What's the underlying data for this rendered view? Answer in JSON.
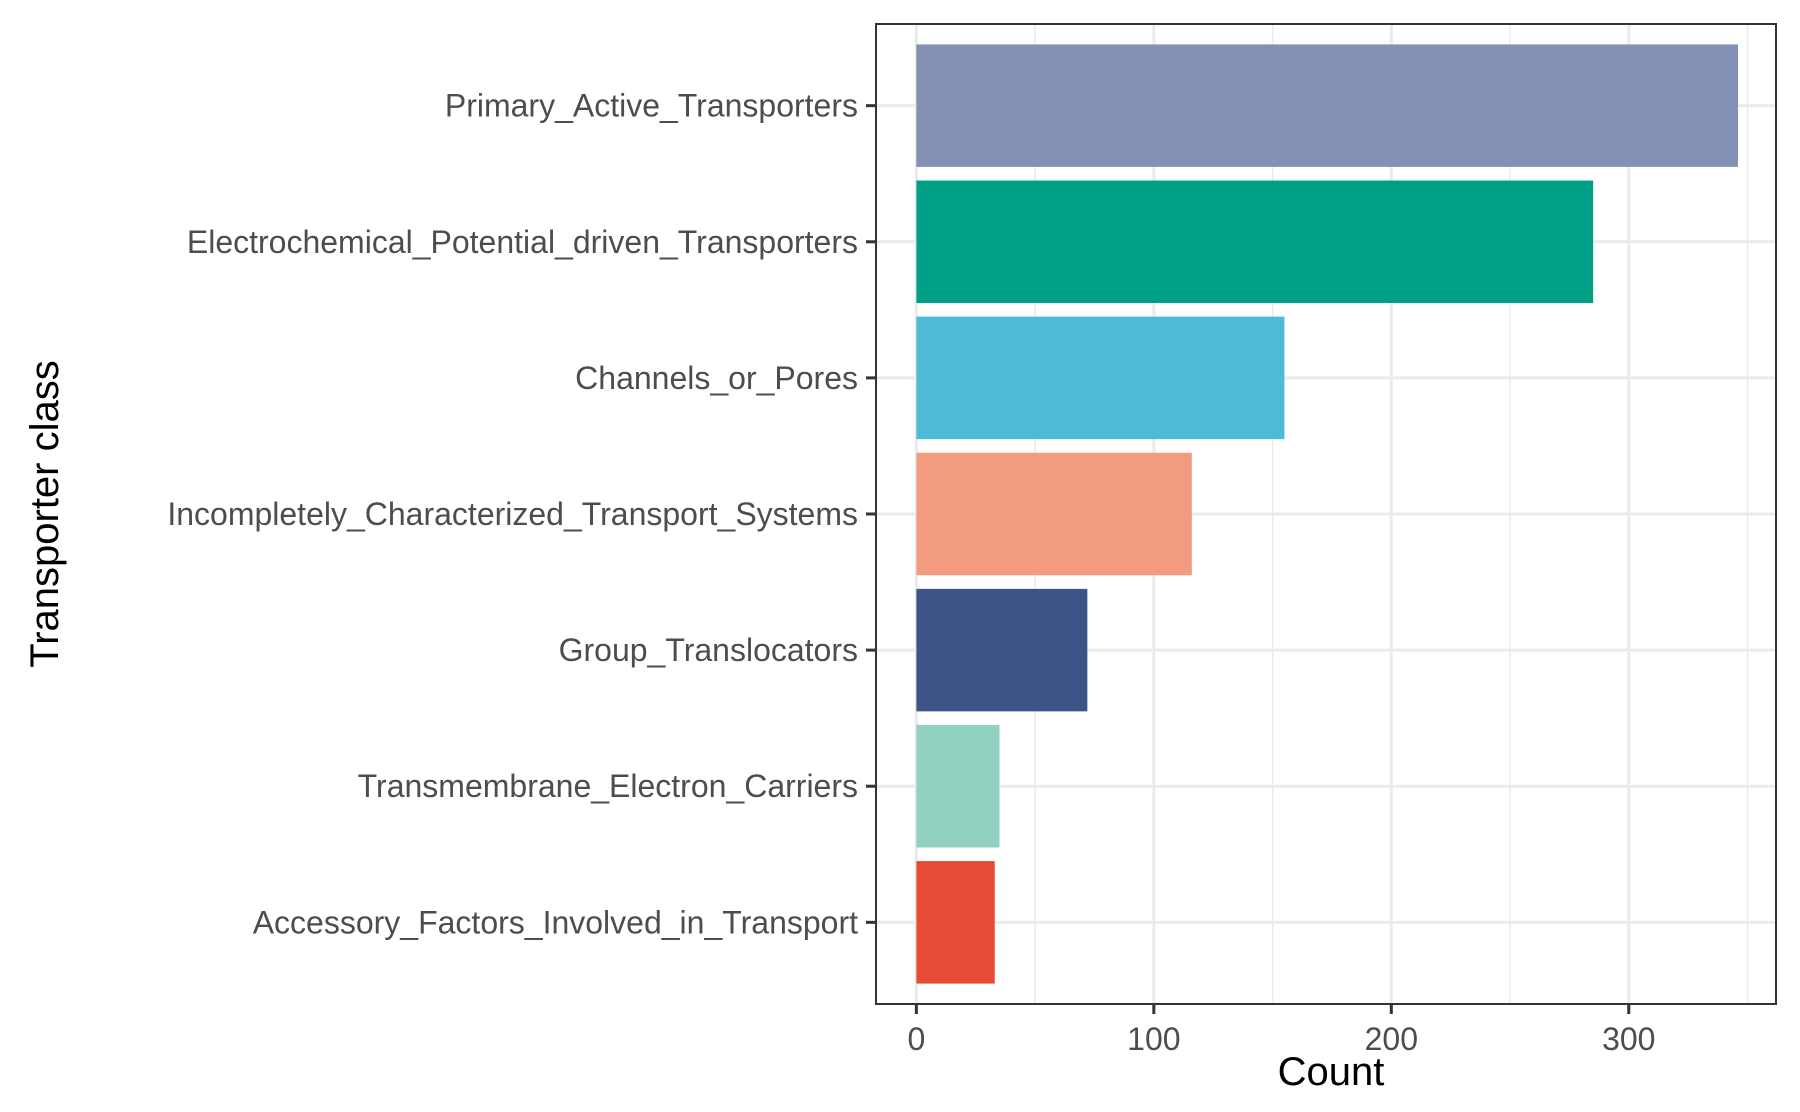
{
  "chart_data": {
    "type": "bar",
    "orientation": "horizontal",
    "categories": [
      "Primary_Active_Transporters",
      "Electrochemical_Potential_driven_Transporters",
      "Channels_or_Pores",
      "Incompletely_Characterized_Transport_Systems",
      "Group_Translocators",
      "Transmembrane_Electron_Carriers",
      "Accessory_Factors_Involved_in_Transport"
    ],
    "values": [
      346,
      285,
      155,
      116,
      72,
      35,
      33
    ],
    "colors": [
      "#8491B4",
      "#00A087",
      "#4DBBD5",
      "#F39B7F",
      "#3C5488",
      "#91D1C2",
      "#E64B35"
    ],
    "xlabel": "Count",
    "ylabel": "Transporter class",
    "xlim": [
      -17,
      362
    ],
    "xticks": [
      "0",
      "100",
      "200",
      "300"
    ],
    "grid": true,
    "legend": "none"
  }
}
